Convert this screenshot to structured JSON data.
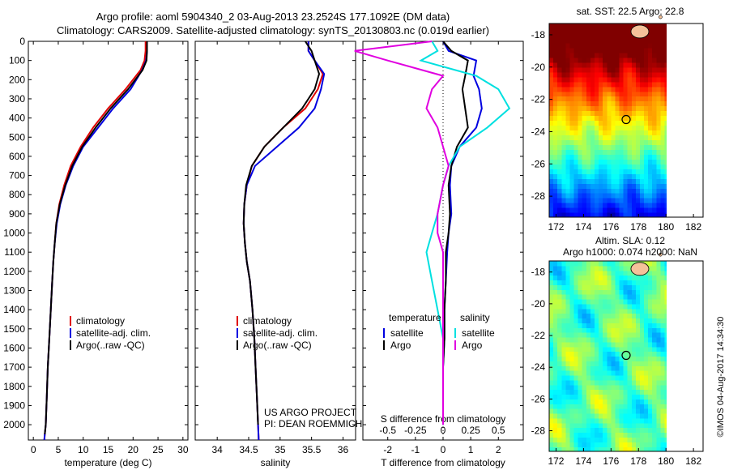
{
  "header": {
    "line1": "Argo profile: aoml 5904340_2 03-Aug-2013 23.2524S 177.1092E (DM data)",
    "line2": "Climatology: CARS2009. Satellite-adjusted climatology: synTS_20130803.nc (0.019d earlier)"
  },
  "side_stamp": "©IMOS 04-Aug-2017 14:34:30",
  "colors": {
    "climatology": "#e00000",
    "satellite": "#0000e0",
    "argo": "#000000",
    "salinity_sat": "#00e0e0",
    "salinity_argo": "#e000e0"
  },
  "chart_data": [
    {
      "type": "line",
      "title": "",
      "xlabel": "temperature (deg C)",
      "ylabel": "",
      "xlim": [
        -1,
        31
      ],
      "ylim": [
        2080,
        0
      ],
      "x_ticks": [
        "0",
        "5",
        "10",
        "15",
        "20",
        "25",
        "30"
      ],
      "y_ticks": [
        "0",
        "100",
        "200",
        "300",
        "400",
        "500",
        "600",
        "700",
        "800",
        "900",
        "1000",
        "1100",
        "1200",
        "1300",
        "1400",
        "1500",
        "1600",
        "1700",
        "1800",
        "1900",
        "2000"
      ],
      "legend": {
        "placement": "lower-center",
        "entries": [
          "climatology",
          "satellite-adj. clim.",
          "Argo(..raw -QC)"
        ]
      },
      "series": [
        {
          "name": "climatology",
          "color": "#e00000",
          "x": [
            22.5,
            22.5,
            22.3,
            21.5,
            18.5,
            15,
            12,
            9.5,
            7.5,
            6.2,
            5.2,
            4.6,
            4.3,
            4.0,
            3.8,
            3.5,
            3.2,
            2.9,
            2.7,
            2.5,
            2.3,
            2.2
          ],
          "y": [
            0,
            50,
            100,
            150,
            250,
            350,
            450,
            550,
            650,
            750,
            850,
            950,
            1050,
            1150,
            1250,
            1400,
            1550,
            1700,
            1850,
            2000,
            2050,
            2080
          ]
        },
        {
          "name": "satellite-adj. clim.",
          "color": "#0000e0",
          "x": [
            22.8,
            22.8,
            22.6,
            21.8,
            19.5,
            16,
            13,
            10,
            8,
            6.5,
            5.4,
            4.7,
            4.3,
            4.0,
            3.8,
            3.5,
            3.2,
            2.9,
            2.7,
            2.5,
            2.3,
            2.2
          ],
          "y": [
            0,
            50,
            100,
            150,
            250,
            350,
            450,
            550,
            650,
            750,
            850,
            950,
            1050,
            1150,
            1250,
            1400,
            1550,
            1700,
            1850,
            2000,
            2050,
            2080
          ]
        },
        {
          "name": "Argo(..raw -QC)",
          "color": "#000000",
          "x": [
            22.8,
            22.8,
            22.7,
            21.9,
            19,
            15.5,
            12.5,
            9.8,
            7.8,
            6.4,
            5.3,
            4.6,
            4.3,
            4.0,
            3.8,
            3.5,
            3.2,
            2.9,
            2.7,
            2.5,
            2.3
          ],
          "y": [
            0,
            50,
            100,
            150,
            250,
            350,
            450,
            550,
            650,
            750,
            850,
            950,
            1050,
            1150,
            1250,
            1400,
            1550,
            1700,
            1850,
            2000,
            2050
          ]
        }
      ]
    },
    {
      "type": "line",
      "title": "",
      "xlabel": "salinity",
      "ylabel": "",
      "xlim": [
        33.65,
        36.2
      ],
      "ylim": [
        2080,
        0
      ],
      "x_ticks": [
        "34",
        "34.5",
        "35",
        "35.5",
        "36"
      ],
      "legend": {
        "placement": "lower-center",
        "entries": [
          "climatology",
          "satellite-adj. clim.",
          "Argo(..raw -QC)"
        ]
      },
      "annotation": [
        "US ARGO PROJECT",
        "PI: DEAN ROEMMICH"
      ],
      "series": [
        {
          "name": "climatology",
          "color": "#e00000",
          "x": [
            35.45,
            35.45,
            35.55,
            35.68,
            35.6,
            35.4,
            35.05,
            34.75,
            34.55,
            34.47,
            34.43,
            34.42,
            34.44,
            34.47,
            34.52,
            34.56,
            34.59,
            34.61,
            34.63,
            34.65,
            34.66
          ],
          "y": [
            0,
            50,
            100,
            170,
            250,
            350,
            450,
            550,
            650,
            750,
            850,
            950,
            1050,
            1150,
            1250,
            1400,
            1550,
            1700,
            1850,
            2000,
            2080
          ]
        },
        {
          "name": "satellite-adj. clim.",
          "color": "#0000e0",
          "x": [
            35.45,
            35.45,
            35.55,
            35.7,
            35.65,
            35.55,
            35.3,
            34.95,
            34.6,
            34.47,
            34.43,
            34.42,
            34.44,
            34.47,
            34.52,
            34.56,
            34.59,
            34.61,
            34.63,
            34.65,
            34.66
          ],
          "y": [
            0,
            50,
            100,
            170,
            250,
            350,
            450,
            550,
            650,
            750,
            850,
            950,
            1050,
            1150,
            1250,
            1400,
            1550,
            1700,
            1850,
            2000,
            2080
          ]
        },
        {
          "name": "Argo(..raw -QC)",
          "color": "#000000",
          "x": [
            35.4,
            35.5,
            35.55,
            35.62,
            35.55,
            35.35,
            35.05,
            34.75,
            34.55,
            34.46,
            34.43,
            34.42,
            34.44,
            34.47,
            34.52,
            34.56,
            34.59,
            34.61,
            34.63,
            34.65
          ],
          "y": [
            0,
            50,
            100,
            170,
            250,
            350,
            450,
            550,
            650,
            750,
            850,
            950,
            1050,
            1150,
            1250,
            1400,
            1550,
            1700,
            1850,
            2000
          ]
        }
      ]
    },
    {
      "type": "line",
      "title": "",
      "xlabel": "T difference from climatology",
      "xlabel_top": "S difference from climatology",
      "ylabel": "",
      "xlim": [
        -2.9,
        2.9
      ],
      "ylim": [
        2080,
        0
      ],
      "x_ticks": [
        "-2",
        "-1",
        "0",
        "1",
        "2"
      ],
      "x_ticks_secondary": [
        "-0.5",
        "-0.25",
        "0",
        "0.25",
        "0.5"
      ],
      "legend": {
        "placement": "lower-center",
        "groups": [
          {
            "heading": "temperature",
            "entries": [
              "satellite",
              "Argo"
            ]
          },
          {
            "heading": "salinity",
            "entries": [
              "satellite",
              "Argo"
            ]
          }
        ]
      },
      "series": [
        {
          "name": "satellite",
          "group": "temperature",
          "color": "#0000e0",
          "x": [
            0.0,
            0.2,
            1.2,
            1.1,
            1.3,
            1.4,
            1.2,
            0.6,
            0.3,
            0.25,
            0.3,
            0.2,
            0.15,
            0.1,
            0.05,
            0.05,
            0.0,
            0.0,
            0.0
          ],
          "y": [
            0,
            50,
            100,
            180,
            250,
            350,
            450,
            550,
            650,
            750,
            900,
            1000,
            1100,
            1250,
            1400,
            1550,
            1700,
            1850,
            2000
          ]
        },
        {
          "name": "Argo",
          "group": "temperature",
          "color": "#000000",
          "x": [
            0.0,
            0.3,
            0.9,
            0.8,
            0.7,
            0.8,
            0.9,
            0.5,
            0.3,
            0.2,
            0.25,
            0.2,
            0.1,
            0.1,
            0.05,
            0.05,
            0.0,
            0.0,
            0.0
          ],
          "y": [
            0,
            50,
            100,
            180,
            250,
            350,
            450,
            550,
            650,
            750,
            900,
            1000,
            1100,
            1250,
            1400,
            1550,
            1700,
            1850,
            2000
          ]
        },
        {
          "name": "satellite",
          "group": "salinity",
          "color": "#00e0e0",
          "x": [
            -0.1,
            -0.05,
            -0.2,
            0.3,
            0.5,
            0.6,
            0.4,
            0.15,
            0.05,
            0.0,
            -0.05,
            -0.1,
            -0.15,
            -0.1,
            -0.05,
            0.0,
            0.0,
            0.0,
            0.0
          ],
          "y": [
            0,
            50,
            100,
            180,
            250,
            350,
            450,
            550,
            650,
            750,
            900,
            1000,
            1100,
            1250,
            1400,
            1550,
            1700,
            1850,
            2000
          ]
        },
        {
          "name": "Argo",
          "group": "salinity",
          "color": "#e000e0",
          "x": [
            -0.1,
            -0.8,
            -0.5,
            0.0,
            -0.1,
            -0.15,
            -0.05,
            0.0,
            0.05,
            0.0,
            -0.05,
            -0.05,
            0.0,
            0.0,
            0.0,
            0.0,
            0.0,
            0.0,
            0.0
          ],
          "y": [
            0,
            50,
            100,
            180,
            250,
            350,
            450,
            550,
            650,
            750,
            900,
            1000,
            1100,
            1250,
            1400,
            1550,
            1700,
            1850,
            2000
          ]
        }
      ]
    },
    {
      "type": "heatmap",
      "title": "sat. SST: 22.5 Argo: 22.8",
      "xlim": [
        171.5,
        182.7
      ],
      "ylim": [
        -29.3,
        -17.3
      ],
      "x_ticks": [
        "172",
        "174",
        "176",
        "178",
        "180",
        "182"
      ],
      "y_ticks": [
        "-18",
        "-20",
        "-22",
        "-24",
        "-26",
        "-28"
      ],
      "marker": {
        "lon": 177.1,
        "lat": -23.25
      },
      "colormap": "jet"
    },
    {
      "type": "heatmap",
      "title": "Altim. SLA: 0.12",
      "subtitle": "Argo h1000: 0.074 h2000: NaN",
      "xlim": [
        171.5,
        182.7
      ],
      "ylim": [
        -29.3,
        -17.3
      ],
      "x_ticks": [
        "172",
        "174",
        "176",
        "178",
        "180",
        "182"
      ],
      "y_ticks": [
        "-18",
        "-20",
        "-22",
        "-24",
        "-26",
        "-28"
      ],
      "marker": {
        "lon": 177.1,
        "lat": -23.25
      },
      "colormap": "jet"
    }
  ]
}
